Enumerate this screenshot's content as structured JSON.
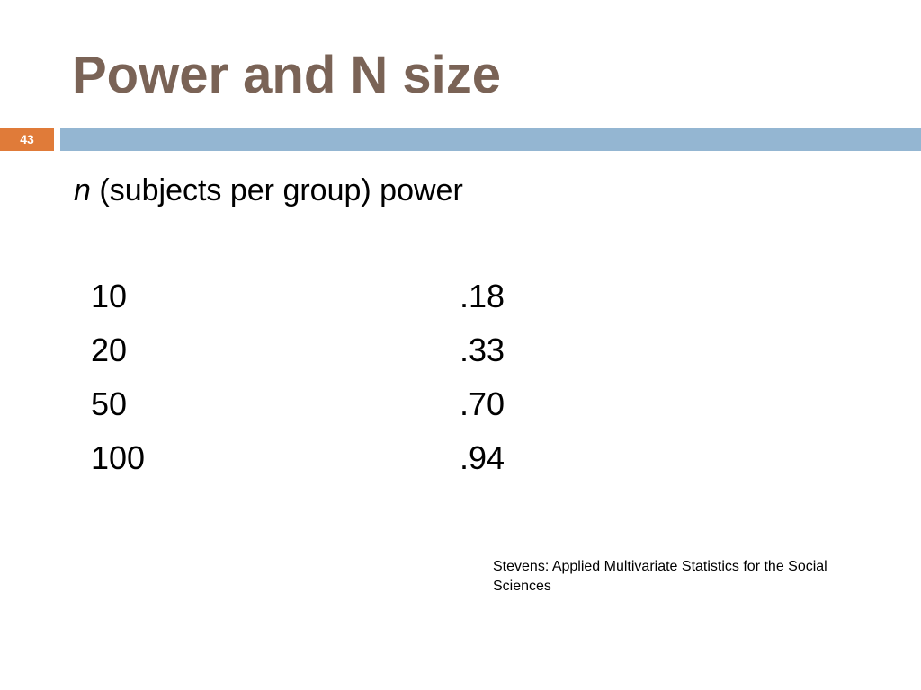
{
  "slide": {
    "title": "Power and N size",
    "number": "43"
  },
  "content": {
    "header_var": "n",
    "header_rest": " (subjects per group) power",
    "rows": [
      {
        "n": "10",
        "power": ".18"
      },
      {
        "n": "20",
        "power": ".33"
      },
      {
        "n": "50",
        "power": ".70"
      },
      {
        "n": "100",
        "power": ".94"
      }
    ],
    "citation": "Stevens: Applied Multivariate Statistics for the Social Sciences"
  },
  "colors": {
    "title": "#7a6356",
    "number_box": "#e07b39",
    "header_bar": "#94b6d2"
  }
}
